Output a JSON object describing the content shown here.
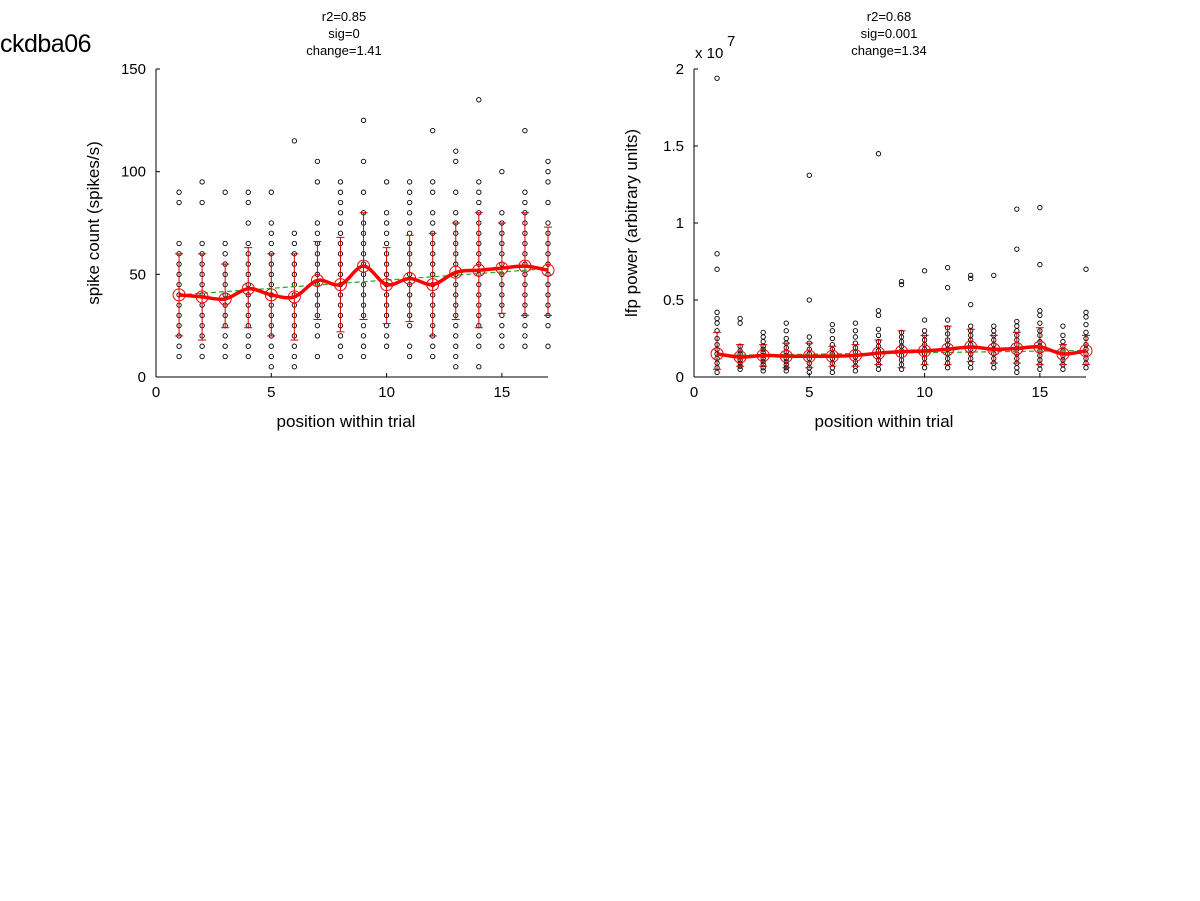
{
  "figure_label": "ckdba06",
  "colors": {
    "points": "#000000",
    "mean_line": "#ff0000",
    "error_bar": "#cc0000",
    "fit_line": "#22aa22"
  },
  "chart_data": [
    {
      "type": "scatter",
      "title_lines": [
        "r2=0.85",
        "sig=0",
        "change=1.41"
      ],
      "xlabel": "position within trial",
      "ylabel": "spike count (spikes/s)",
      "xlim": [
        0,
        17
      ],
      "ylim": [
        0,
        150
      ],
      "xticks": [
        0,
        5,
        10,
        15
      ],
      "yticks": [
        0,
        50,
        100,
        150
      ],
      "exponent_label": "",
      "x": [
        1,
        2,
        3,
        4,
        5,
        6,
        7,
        8,
        9,
        10,
        11,
        12,
        13,
        14,
        15,
        16,
        17
      ],
      "mean": [
        40,
        39,
        38,
        43,
        40,
        39,
        47,
        45,
        54,
        45,
        48,
        45,
        51,
        52,
        53,
        54,
        52
      ],
      "err_low": [
        20,
        18,
        24,
        24,
        20,
        18,
        28,
        22,
        28,
        26,
        27,
        20,
        28,
        24,
        31,
        30,
        30
      ],
      "err_high": [
        60,
        60,
        55,
        63,
        60,
        60,
        66,
        68,
        80,
        63,
        69,
        70,
        75,
        80,
        75,
        80,
        73
      ],
      "fit": [
        40,
        40.8,
        41.6,
        42.4,
        43.2,
        44,
        44.8,
        45.6,
        46.4,
        47.2,
        48,
        48.8,
        49.6,
        50.4,
        51.2,
        52,
        52.8
      ],
      "points": [
        [
          10,
          15,
          20,
          25,
          30,
          35,
          40,
          45,
          50,
          55,
          60,
          65,
          85,
          90
        ],
        [
          10,
          15,
          20,
          25,
          30,
          35,
          40,
          45,
          50,
          55,
          60,
          65,
          85,
          95
        ],
        [
          10,
          15,
          20,
          25,
          30,
          35,
          40,
          45,
          50,
          55,
          60,
          65,
          90
        ],
        [
          10,
          15,
          20,
          25,
          30,
          35,
          40,
          45,
          50,
          55,
          60,
          65,
          75,
          85,
          90
        ],
        [
          5,
          10,
          15,
          20,
          25,
          30,
          35,
          40,
          45,
          50,
          55,
          60,
          65,
          70,
          75,
          90
        ],
        [
          5,
          10,
          15,
          20,
          25,
          30,
          35,
          40,
          45,
          50,
          55,
          60,
          65,
          70,
          115
        ],
        [
          10,
          20,
          25,
          30,
          35,
          40,
          45,
          50,
          55,
          60,
          65,
          70,
          75,
          95,
          105
        ],
        [
          10,
          15,
          20,
          25,
          30,
          35,
          40,
          45,
          50,
          55,
          60,
          65,
          70,
          75,
          80,
          85,
          90,
          95
        ],
        [
          10,
          15,
          20,
          25,
          30,
          35,
          40,
          45,
          50,
          55,
          60,
          65,
          70,
          75,
          80,
          90,
          105,
          125
        ],
        [
          15,
          20,
          25,
          30,
          35,
          40,
          45,
          50,
          55,
          60,
          65,
          70,
          75,
          80,
          95
        ],
        [
          10,
          15,
          25,
          30,
          35,
          40,
          45,
          50,
          55,
          60,
          65,
          70,
          75,
          80,
          85,
          90,
          95
        ],
        [
          10,
          15,
          20,
          25,
          30,
          35,
          40,
          45,
          50,
          55,
          60,
          65,
          70,
          75,
          80,
          90,
          95,
          120
        ],
        [
          5,
          10,
          15,
          20,
          25,
          30,
          35,
          40,
          45,
          50,
          55,
          60,
          65,
          70,
          75,
          80,
          90,
          105,
          110
        ],
        [
          5,
          15,
          20,
          25,
          30,
          35,
          40,
          45,
          50,
          55,
          60,
          65,
          70,
          75,
          80,
          85,
          90,
          95,
          135
        ],
        [
          15,
          20,
          25,
          30,
          35,
          40,
          45,
          50,
          55,
          60,
          65,
          70,
          75,
          80,
          100
        ],
        [
          15,
          20,
          25,
          30,
          35,
          40,
          45,
          50,
          55,
          60,
          65,
          70,
          75,
          80,
          85,
          90,
          120
        ],
        [
          15,
          25,
          30,
          35,
          40,
          45,
          50,
          55,
          60,
          65,
          70,
          75,
          85,
          95,
          100,
          105
        ]
      ]
    },
    {
      "type": "scatter",
      "title_lines": [
        "r2=0.68",
        "sig=0.001",
        "change=1.34"
      ],
      "xlabel": "position within trial",
      "ylabel": "lfp power (arbitrary units)",
      "xlim": [
        0,
        17
      ],
      "ylim": [
        0,
        20000000
      ],
      "xticks": [
        0,
        5,
        10,
        15
      ],
      "yticks": [
        0,
        5000000,
        10000000,
        15000000,
        20000000
      ],
      "ytick_labels": [
        "0",
        "0.5",
        "1",
        "1.5",
        "2"
      ],
      "exponent_label": "x 10",
      "exponent_power": "7",
      "x": [
        1,
        2,
        3,
        4,
        5,
        6,
        7,
        8,
        9,
        10,
        11,
        12,
        13,
        14,
        15,
        16,
        17
      ],
      "mean": [
        1500000,
        1300000,
        1400000,
        1350000,
        1350000,
        1350000,
        1400000,
        1550000,
        1650000,
        1700000,
        1800000,
        1950000,
        1800000,
        1850000,
        1950000,
        1500000,
        1700000
      ],
      "err_low": [
        500000,
        700000,
        700000,
        600000,
        600000,
        700000,
        700000,
        800000,
        600000,
        800000,
        800000,
        1000000,
        900000,
        900000,
        800000,
        800000,
        800000
      ],
      "err_high": [
        2900000,
        2100000,
        2100000,
        2200000,
        2200000,
        2000000,
        2100000,
        2400000,
        3000000,
        2700000,
        3300000,
        3100000,
        2700000,
        2900000,
        3200000,
        2100000,
        2700000
      ],
      "fit": [
        1400000,
        1420000,
        1440000,
        1460000,
        1480000,
        1500000,
        1520000,
        1540000,
        1560000,
        1580000,
        1600000,
        1620000,
        1640000,
        1660000,
        1680000,
        1700000,
        1720000
      ],
      "points": [
        [
          300000,
          600000,
          900000,
          1200000,
          1500000,
          1800000,
          2100000,
          2500000,
          3000000,
          3500000,
          3800000,
          4200000,
          7000000,
          8000000,
          19400000
        ],
        [
          500000,
          700000,
          900000,
          1100000,
          1300000,
          1500000,
          1700000,
          2000000,
          3500000,
          3800000
        ],
        [
          400000,
          600000,
          800000,
          1000000,
          1200000,
          1400000,
          1600000,
          1800000,
          2000000,
          2300000,
          2600000,
          2900000
        ],
        [
          400000,
          600000,
          800000,
          1000000,
          1200000,
          1400000,
          1600000,
          1900000,
          2200000,
          2500000,
          3000000,
          3500000
        ],
        [
          300000,
          600000,
          900000,
          1200000,
          1500000,
          1800000,
          2200000,
          2600000,
          5000000,
          13100000
        ],
        [
          300000,
          600000,
          900000,
          1200000,
          1500000,
          1800000,
          2100000,
          2500000,
          3000000,
          3400000
        ],
        [
          400000,
          700000,
          1000000,
          1300000,
          1600000,
          1900000,
          2200000,
          2600000,
          3000000,
          3500000
        ],
        [
          500000,
          800000,
          1100000,
          1400000,
          1700000,
          2000000,
          2300000,
          2700000,
          3100000,
          4000000,
          4300000,
          14500000
        ],
        [
          500000,
          800000,
          1100000,
          1400000,
          1700000,
          2000000,
          2300000,
          2600000,
          2900000,
          6000000,
          6200000
        ],
        [
          600000,
          900000,
          1200000,
          1500000,
          1800000,
          2100000,
          2400000,
          2700000,
          3000000,
          3700000,
          6900000
        ],
        [
          600000,
          900000,
          1200000,
          1500000,
          1800000,
          2100000,
          2400000,
          2800000,
          3200000,
          3700000,
          5800000,
          7100000
        ],
        [
          600000,
          900000,
          1200000,
          1500000,
          1800000,
          2100000,
          2400000,
          2700000,
          3000000,
          3300000,
          4700000,
          6400000,
          6600000
        ],
        [
          600000,
          900000,
          1200000,
          1500000,
          1800000,
          2100000,
          2400000,
          2700000,
          3000000,
          3300000,
          6600000
        ],
        [
          300000,
          600000,
          900000,
          1200000,
          1500000,
          1800000,
          2100000,
          2400000,
          2700000,
          3000000,
          3300000,
          3600000,
          8300000,
          10900000
        ],
        [
          500000,
          800000,
          1100000,
          1400000,
          1700000,
          2000000,
          2300000,
          2700000,
          3000000,
          3500000,
          4000000,
          4300000,
          7300000,
          11000000
        ],
        [
          500000,
          800000,
          1100000,
          1400000,
          1700000,
          2000000,
          2300000,
          2700000,
          3300000
        ],
        [
          600000,
          900000,
          1200000,
          1500000,
          1800000,
          2100000,
          2500000,
          2900000,
          3400000,
          3900000,
          4200000,
          7000000
        ]
      ]
    }
  ]
}
